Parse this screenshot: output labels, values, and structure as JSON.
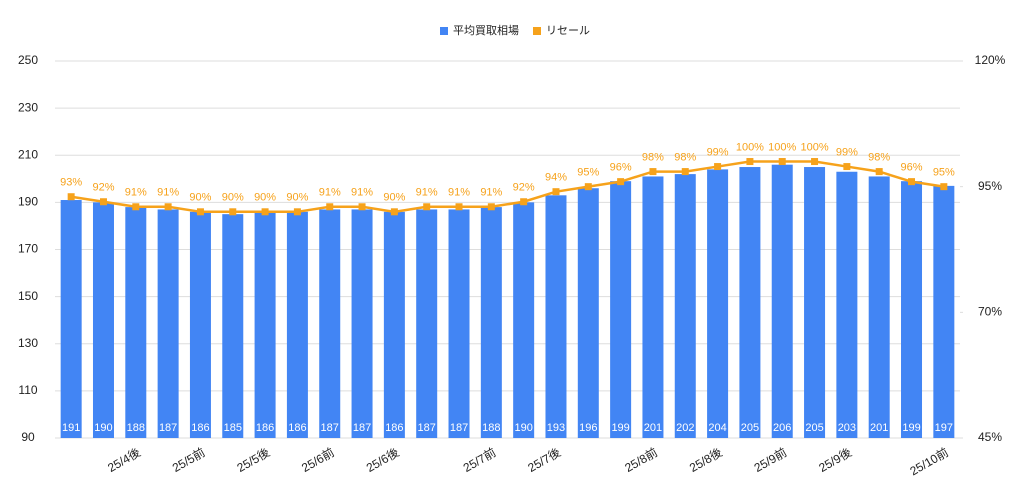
{
  "chart_data": {
    "type": "bar_line",
    "categories": [
      null,
      null,
      "25/4後",
      null,
      "25/5前",
      null,
      "25/5後",
      null,
      "25/6前",
      null,
      "25/6後",
      null,
      null,
      "25/7前",
      null,
      "25/7後",
      null,
      null,
      "25/8前",
      null,
      "25/8後",
      null,
      "25/9前",
      null,
      "25/9後",
      null,
      null,
      "25/10前"
    ],
    "series": [
      {
        "name": "平均買取相場",
        "type": "bar",
        "color": "#4285f4",
        "values": [
          191,
          190,
          188,
          187,
          186,
          185,
          186,
          186,
          187,
          187,
          186,
          187,
          187,
          188,
          190,
          193,
          196,
          199,
          201,
          202,
          204,
          205,
          206,
          205,
          203,
          201,
          199,
          197
        ]
      },
      {
        "name": "リセール",
        "type": "line",
        "axis": "y2",
        "color": "#f6a21b",
        "values": [
          93,
          92,
          91,
          91,
          90,
          90,
          90,
          90,
          91,
          91,
          90,
          91,
          91,
          91,
          92,
          94,
          95,
          96,
          98,
          98,
          99,
          100,
          100,
          100,
          99,
          98,
          96,
          95
        ],
        "value_labels": [
          "93%",
          "92%",
          "91%",
          "91%",
          "90%",
          "90%",
          "90%",
          "90%",
          "91%",
          "91%",
          "90%",
          "91%",
          "91%",
          "91%",
          "92%",
          "94%",
          "95%",
          "96%",
          "98%",
          "98%",
          "99%",
          "100%",
          "100%",
          "100%",
          "99%",
          "98%",
          "96%",
          "95%"
        ]
      }
    ],
    "ylim": [
      90,
      250
    ],
    "yticks": [
      90,
      110,
      130,
      150,
      170,
      190,
      210,
      230,
      250
    ],
    "y2lim": [
      45,
      120
    ],
    "y2ticks": [
      {
        "value": 45,
        "label": "45%"
      },
      {
        "value": 70,
        "label": "70%"
      },
      {
        "value": 95,
        "label": "95%"
      },
      {
        "value": 120,
        "label": "120%"
      }
    ],
    "grid": true,
    "legend": "top"
  }
}
